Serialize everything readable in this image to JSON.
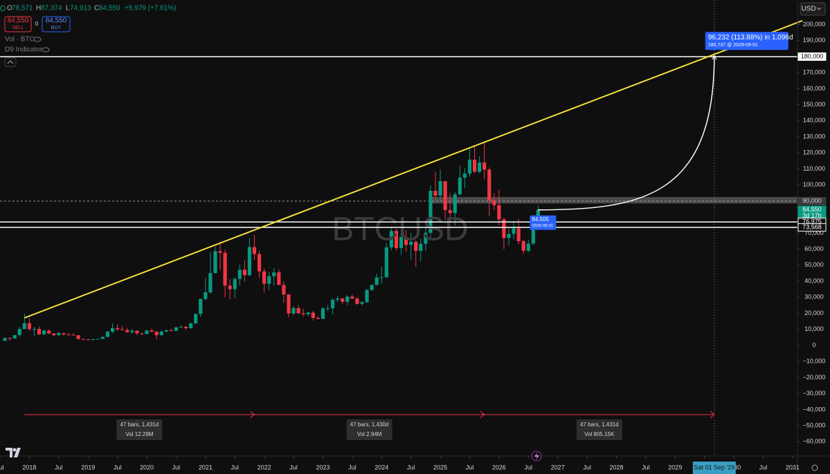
{
  "header": {
    "o_label": "O",
    "o": "78,571",
    "h_label": "H",
    "h": "87,374",
    "l_label": "L",
    "l": "74,913",
    "c_label": "C",
    "c": "84,550",
    "change": "+5,979 (+7.61%)",
    "sell_price": "84,550",
    "sell": "SELL",
    "spread": "0",
    "buy_price": "84,550",
    "buy": "BUY",
    "indicators": [
      "Vol · BTC",
      "D9 Indicator"
    ],
    "currency": "USD"
  },
  "chart_data": {
    "type": "candlestick",
    "title": "BTCUSD",
    "up_color": "#089981",
    "down_color": "#f23645",
    "x": [
      "2017-08",
      "2017-09",
      "2017-10",
      "2017-11",
      "2017-12",
      "2018-01",
      "2018-02",
      "2018-03",
      "2018-04",
      "2018-05",
      "2018-06",
      "2018-07",
      "2018-08",
      "2018-09",
      "2018-10",
      "2018-11",
      "2018-12",
      "2019-01",
      "2019-02",
      "2019-03",
      "2019-04",
      "2019-05",
      "2019-06",
      "2019-07",
      "2019-08",
      "2019-09",
      "2019-10",
      "2019-11",
      "2019-12",
      "2020-01",
      "2020-02",
      "2020-03",
      "2020-04",
      "2020-05",
      "2020-06",
      "2020-07",
      "2020-08",
      "2020-09",
      "2020-10",
      "2020-11",
      "2020-12",
      "2021-01",
      "2021-02",
      "2021-03",
      "2021-04",
      "2021-05",
      "2021-06",
      "2021-07",
      "2021-08",
      "2021-09",
      "2021-10",
      "2021-11",
      "2021-12",
      "2022-01",
      "2022-02",
      "2022-03",
      "2022-04",
      "2022-05",
      "2022-06",
      "2022-07",
      "2022-08",
      "2022-09",
      "2022-10",
      "2022-11",
      "2022-12",
      "2023-01",
      "2023-02",
      "2023-03",
      "2023-04",
      "2023-05",
      "2023-06",
      "2023-07",
      "2023-08",
      "2023-09",
      "2023-10",
      "2023-11",
      "2023-12",
      "2024-01",
      "2024-02",
      "2024-03",
      "2024-04",
      "2024-05",
      "2024-06",
      "2024-07",
      "2024-08",
      "2024-09",
      "2024-10",
      "2024-11",
      "2024-12",
      "2025-01",
      "2025-02",
      "2025-03",
      "2025-04",
      "2025-05",
      "2025-06",
      "2025-07",
      "2025-08",
      "2025-09",
      "2025-10",
      "2025-11",
      "2025-12",
      "2026-01",
      "2026-02",
      "2026-03",
      "2026-04",
      "2026-05",
      "2026-06",
      "2026-07",
      "2026-08",
      "2026-09"
    ],
    "open": [
      2870,
      4700,
      4340,
      6470,
      10230,
      13860,
      10230,
      10330,
      6930,
      9240,
      7490,
      6390,
      7730,
      7030,
      6630,
      6370,
      4040,
      3740,
      3460,
      3850,
      4100,
      5320,
      8570,
      10820,
      10090,
      9630,
      8300,
      9200,
      7570,
      7190,
      9350,
      8540,
      6410,
      8630,
      9450,
      9140,
      11350,
      11680,
      10780,
      13800,
      19700,
      28990,
      33140,
      45140,
      58800,
      57720,
      37300,
      35040,
      41460,
      47170,
      43820,
      61300,
      57000,
      46200,
      38480,
      43190,
      45540,
      37710,
      31790,
      19940,
      23300,
      20050,
      19430,
      20490,
      17170,
      16540,
      23130,
      23150,
      28480,
      29230,
      27220,
      30480,
      29230,
      25940,
      26970,
      34660,
      37720,
      42280,
      42580,
      61130,
      71330,
      60670,
      67490,
      62680,
      64630,
      58970,
      63330,
      70220,
      96400,
      93430,
      102400,
      84350,
      82550,
      94200,
      104600,
      107100,
      115760,
      108240,
      114050,
      109600,
      90400,
      87500,
      78600,
      67000,
      69500,
      73000,
      65000,
      59000,
      63500,
      78571
    ],
    "high": [
      4750,
      4970,
      6470,
      11500,
      19800,
      17200,
      11800,
      11700,
      9760,
      10000,
      7760,
      8480,
      7760,
      7410,
      7680,
      6560,
      4240,
      4110,
      4210,
      4100,
      5640,
      9070,
      13880,
      13130,
      12330,
      10930,
      10370,
      9510,
      7750,
      9600,
      10500,
      9190,
      9470,
      10070,
      10380,
      11460,
      12470,
      12090,
      14100,
      19860,
      29300,
      41950,
      58350,
      61800,
      64850,
      59600,
      41330,
      42320,
      50500,
      52950,
      67000,
      69000,
      59100,
      48000,
      45800,
      48200,
      47440,
      40000,
      31990,
      24670,
      25200,
      22800,
      21100,
      21480,
      18400,
      23950,
      25250,
      29190,
      31000,
      29820,
      31430,
      31800,
      30180,
      27480,
      35000,
      38450,
      44700,
      48970,
      64000,
      73800,
      72700,
      71950,
      71950,
      70080,
      65600,
      66480,
      73600,
      99800,
      108300,
      109600,
      102500,
      95000,
      95750,
      111900,
      110500,
      123200,
      124500,
      117900,
      126200,
      111000,
      94600,
      97000,
      79500,
      73000,
      77500,
      79000,
      66000,
      66000,
      80000,
      87374
    ],
    "low": [
      2580,
      2970,
      4110,
      5520,
      10200,
      9000,
      5900,
      6600,
      6450,
      7050,
      5750,
      6070,
      5880,
      6140,
      6170,
      3650,
      3150,
      3400,
      3390,
      3700,
      4080,
      5270,
      7450,
      9080,
      9350,
      7760,
      7300,
      6530,
      6440,
      6870,
      8450,
      3850,
      6150,
      8130,
      8830,
      8990,
      10950,
      9880,
      10410,
      13220,
      17580,
      28130,
      32300,
      44960,
      47040,
      30000,
      28800,
      29280,
      37330,
      39600,
      43290,
      53260,
      42000,
      32950,
      34300,
      37200,
      37690,
      26700,
      17600,
      18800,
      19600,
      18150,
      18200,
      15480,
      16260,
      16500,
      21350,
      19550,
      26940,
      25810,
      24800,
      28860,
      25370,
      24900,
      26560,
      34120,
      37640,
      38550,
      41880,
      59320,
      59190,
      56550,
      58400,
      53500,
      49000,
      52550,
      58900,
      66800,
      90500,
      89260,
      78250,
      76600,
      74600,
      93400,
      98200,
      105300,
      107300,
      107300,
      103500,
      80600,
      84500,
      75000,
      60000,
      62500,
      66000,
      63000,
      57000,
      58000,
      62500,
      74913
    ],
    "close": [
      4700,
      4340,
      6470,
      10230,
      13860,
      10230,
      10330,
      6930,
      9240,
      7490,
      6390,
      7730,
      7030,
      6630,
      6370,
      4040,
      3740,
      3460,
      3850,
      4100,
      5320,
      8570,
      10820,
      10090,
      9630,
      8300,
      9200,
      7570,
      7190,
      9350,
      8540,
      6410,
      8630,
      9450,
      9140,
      11350,
      11680,
      10780,
      13800,
      19700,
      28990,
      33140,
      45140,
      58800,
      57720,
      37300,
      35040,
      41460,
      47170,
      43820,
      61300,
      57000,
      46200,
      38480,
      43190,
      45540,
      37710,
      31790,
      19940,
      23300,
      20050,
      19430,
      20490,
      17170,
      16540,
      23130,
      23150,
      28480,
      29230,
      27220,
      30480,
      29230,
      25940,
      26970,
      34660,
      37720,
      42280,
      42580,
      61130,
      71330,
      60670,
      67490,
      62680,
      64630,
      58970,
      63330,
      70220,
      96400,
      93430,
      102400,
      84350,
      82550,
      94200,
      104600,
      107100,
      115760,
      108240,
      114050,
      109600,
      90400,
      87500,
      78600,
      67000,
      69500,
      73000,
      65000,
      59000,
      63500,
      78571,
      84550
    ],
    "xlim": [
      "2017-07",
      "2031-02"
    ],
    "xticks": [
      {
        "value": "2017-07",
        "label": "Jul"
      },
      {
        "value": "2018-01",
        "label": "2018"
      },
      {
        "value": "2018-07",
        "label": "Jul"
      },
      {
        "value": "2019-01",
        "label": "2019"
      },
      {
        "value": "2019-07",
        "label": "Jul"
      },
      {
        "value": "2020-01",
        "label": "2020"
      },
      {
        "value": "2020-07",
        "label": "Jul"
      },
      {
        "value": "2021-01",
        "label": "2021"
      },
      {
        "value": "2021-07",
        "label": "Jul"
      },
      {
        "value": "2022-01",
        "label": "2022"
      },
      {
        "value": "2022-07",
        "label": "Jul"
      },
      {
        "value": "2023-01",
        "label": "2023"
      },
      {
        "value": "2023-07",
        "label": "Jul"
      },
      {
        "value": "2024-01",
        "label": "2024"
      },
      {
        "value": "2024-07",
        "label": "Jul"
      },
      {
        "value": "2025-01",
        "label": "2025"
      },
      {
        "value": "2025-07",
        "label": "Jul"
      },
      {
        "value": "2026-01",
        "label": "2026"
      },
      {
        "value": "2026-07",
        "label": "Jul"
      },
      {
        "value": "2027-01",
        "label": "2027"
      },
      {
        "value": "2027-07",
        "label": "Jul"
      },
      {
        "value": "2028-01",
        "label": "2028"
      },
      {
        "value": "2028-07",
        "label": "Jul"
      },
      {
        "value": "2029-01",
        "label": "2029"
      },
      {
        "value": "2029-07",
        "label": "Jul"
      },
      {
        "value": "2030-01",
        "label": "2030"
      },
      {
        "value": "2030-07",
        "label": "Jul"
      },
      {
        "value": "2031-01",
        "label": "2031"
      }
    ],
    "ylim": [
      -66750,
      215300
    ],
    "yticks": [
      {
        "value": -60000,
        "label": "−60,000"
      },
      {
        "value": -50000,
        "label": "−50,000"
      },
      {
        "value": -40000,
        "label": "−40,000"
      },
      {
        "value": -30000,
        "label": "−30,000"
      },
      {
        "value": -20000,
        "label": "−20,000"
      },
      {
        "value": -10000,
        "label": "−10,000"
      },
      0,
      {
        "value": 10000,
        "label": "10,000"
      },
      {
        "value": 20000,
        "label": "20,000"
      },
      {
        "value": 30000,
        "label": "30,000"
      },
      {
        "value": 40000,
        "label": "40,000"
      },
      {
        "value": 50000,
        "label": "50,000"
      },
      {
        "value": 60000,
        "label": "60,000"
      },
      {
        "value": 70000,
        "label": "70,000"
      },
      {
        "value": 80000,
        "label": "80,000"
      },
      {
        "value": 90000,
        "label": "90,000"
      },
      {
        "value": 100000,
        "label": "100,000"
      },
      {
        "value": 110000,
        "label": "110,000"
      },
      {
        "value": 120000,
        "label": "120,000"
      },
      {
        "value": 130000,
        "label": "130,000"
      },
      {
        "value": 140000,
        "label": "140,000"
      },
      {
        "value": 150000,
        "label": "150,000"
      },
      {
        "value": 160000,
        "label": "160,000"
      },
      {
        "value": 170000,
        "label": "170,000"
      },
      {
        "value": 180000,
        "label": "180,000"
      },
      {
        "value": 190000,
        "label": "190,000"
      },
      {
        "value": 200000,
        "label": "200,000"
      }
    ],
    "log_scale": false,
    "grid": false,
    "trendline": {
      "color": "#f5e13c",
      "x": [
        "2017-12",
        "2031-03"
      ],
      "values": [
        17200,
        202400
      ]
    },
    "hlines": [
      {
        "value": 180000,
        "color": "#ffffff"
      },
      {
        "value": 76975,
        "color": "#ffffff"
      },
      {
        "value": 73568,
        "color": "#ffffff"
      }
    ],
    "dashed_line": {
      "value": 90000,
      "color": "#9a9a9a"
    },
    "zone": {
      "from": "2024-11",
      "low": 88500,
      "high": 92500,
      "color": "#5a5a5a"
    },
    "price_tags": [
      {
        "value": 180000,
        "label": "180,000",
        "style": "light"
      },
      {
        "value": 90000,
        "label": "90,000",
        "style": "muted"
      },
      {
        "value": 84550,
        "label": "84,550",
        "sub": "3d 17h",
        "style": "green"
      },
      {
        "value": 76975,
        "label": "76,975",
        "style": "outline"
      },
      {
        "value": 73568,
        "label": "73,568",
        "style": "outline"
      }
    ],
    "projection": {
      "x": [
        "2026-09",
        "2029-09"
      ],
      "values": [
        84505,
        180737
      ],
      "color": "#ffffff",
      "label": "96,232 (113.88%) in 1,096d",
      "sublabel": "180,737 @ 2029-09-01",
      "start_label": "84,505",
      "start_sublabel": "2026-09-01"
    },
    "crosshair": {
      "x": "2029-09",
      "label": "Sat 01 Sep '29"
    },
    "date_ranges": [
      {
        "from": "2017-12",
        "to": "2021-11",
        "label": "47 bars, 1,431d",
        "vol": "Vol 12.29M"
      },
      {
        "from": "2021-11",
        "to": "2025-10",
        "label": "47 bars, 1,430d",
        "vol": "Vol 2.94M"
      },
      {
        "from": "2025-10",
        "to": "2029-09",
        "label": "47 bars, 1,431d",
        "vol": "Vol 805.15K"
      }
    ],
    "range_color": "#f23645"
  }
}
